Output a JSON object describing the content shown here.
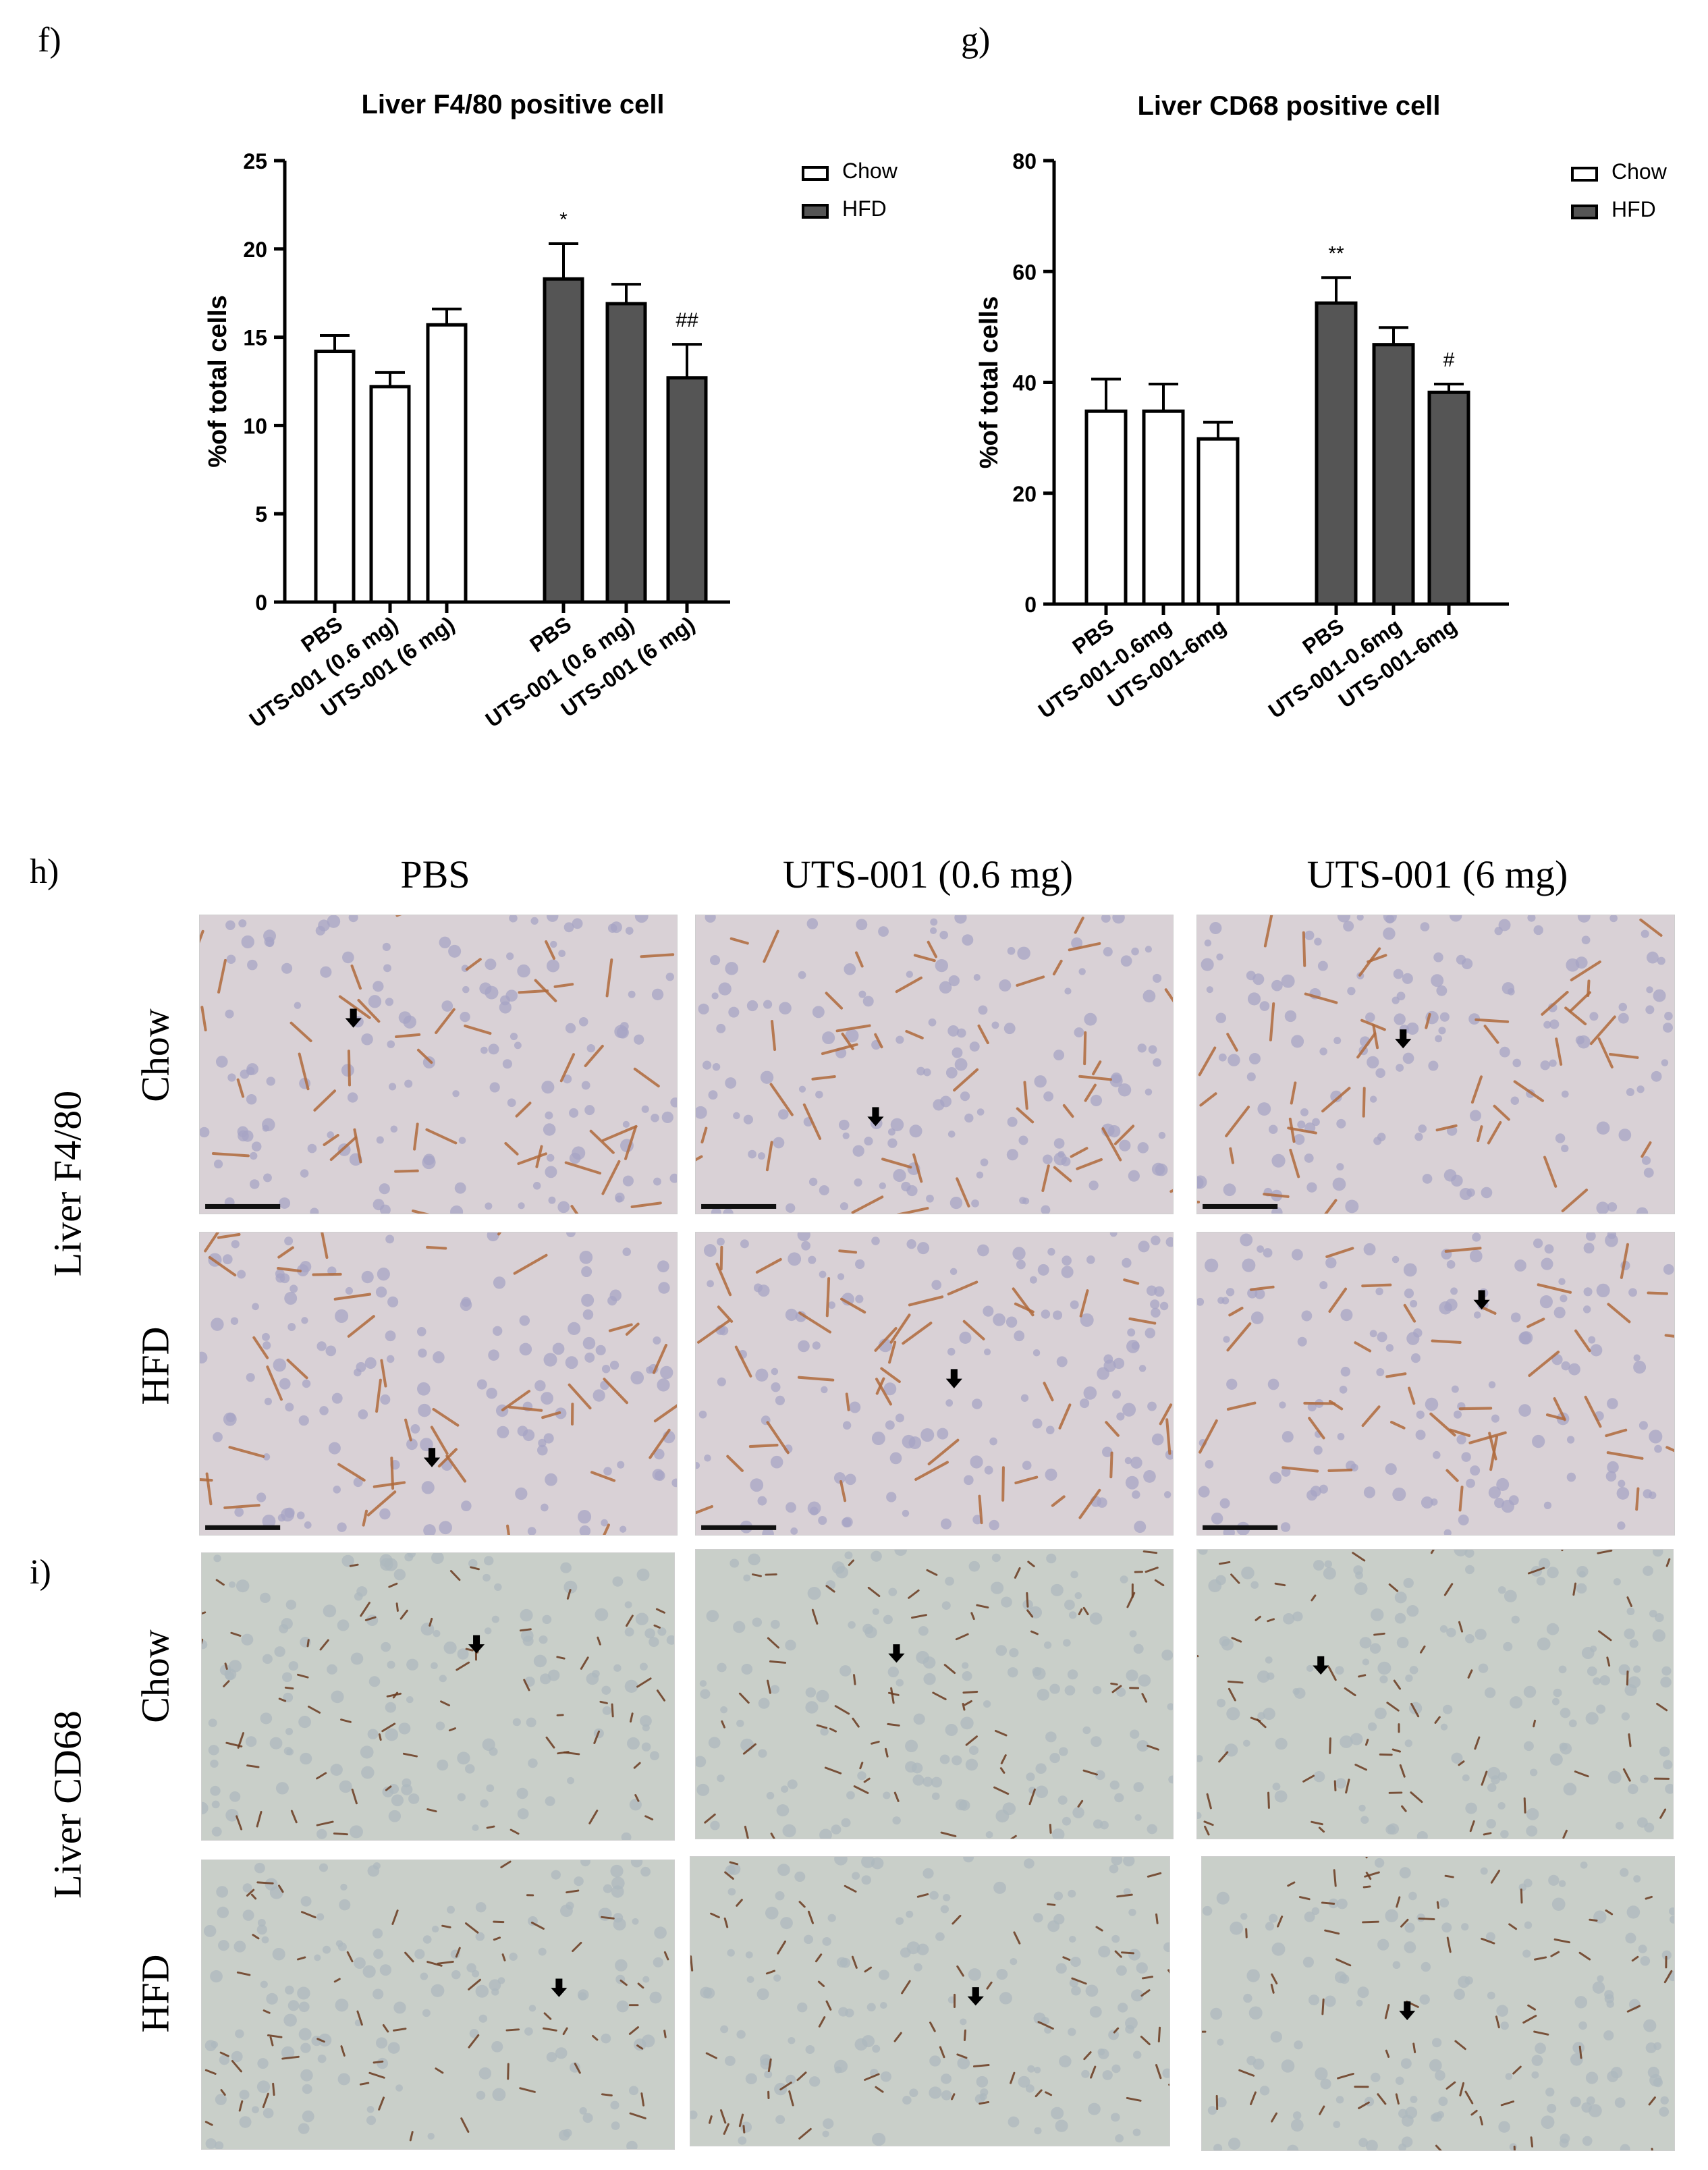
{
  "panels": {
    "f": "f)",
    "g": "g)",
    "h": "h)",
    "i": "i)"
  },
  "chart_data": [
    {
      "type": "bar",
      "title": "Liver F4/80 positive cell",
      "ylabel": "%of total cells",
      "xlabel": "",
      "ylim": [
        0,
        25
      ],
      "yticks": [
        0,
        5,
        10,
        15,
        20,
        25
      ],
      "categories": [
        "PBS",
        "UTS-001 (0.6 mg)",
        "UTS-001 (6 mg)",
        "PBS",
        "UTS-001 (0.6 mg)",
        "UTS-001 (6 mg)"
      ],
      "groups": [
        "Chow",
        "Chow",
        "Chow",
        "HFD",
        "HFD",
        "HFD"
      ],
      "values": [
        14.2,
        12.2,
        15.7,
        18.3,
        16.9,
        12.7
      ],
      "errors": [
        0.9,
        0.8,
        0.9,
        2.0,
        1.1,
        1.9
      ],
      "annotations": [
        "",
        "",
        "",
        "*",
        "",
        "##"
      ],
      "legend": [
        {
          "name": "Chow",
          "color": "#ffffff"
        },
        {
          "name": "HFD",
          "color": "#555555"
        }
      ],
      "legend_position": "top-right"
    },
    {
      "type": "bar",
      "title": "Liver CD68 positive cell",
      "ylabel": "%of total cells",
      "xlabel": "",
      "ylim": [
        0,
        80
      ],
      "yticks": [
        0,
        20,
        40,
        60,
        80
      ],
      "categories": [
        "PBS",
        "UTS-001-0.6mg",
        "UTS-001-6mg",
        "PBS",
        "UTS-001-0.6mg",
        "UTS-001-6mg"
      ],
      "groups": [
        "Chow",
        "Chow",
        "Chow",
        "HFD",
        "HFD",
        "HFD"
      ],
      "values": [
        34.8,
        34.8,
        29.8,
        54.3,
        46.8,
        38.2
      ],
      "errors": [
        5.8,
        4.9,
        3.0,
        4.6,
        3.1,
        1.5
      ],
      "annotations": [
        "",
        "",
        "",
        "**",
        "",
        "#"
      ],
      "legend": [
        {
          "name": "Chow",
          "color": "#ffffff"
        },
        {
          "name": "HFD",
          "color": "#555555"
        }
      ],
      "legend_position": "top-right"
    }
  ],
  "micrographs": {
    "columns": [
      "PBS",
      "UTS-001 (0.6 mg)",
      "UTS-001 (6 mg)"
    ],
    "f480": {
      "label": "Liver F4/80",
      "rows": [
        "Chow",
        "HFD"
      ]
    },
    "cd68": {
      "label": "Liver CD68",
      "rows": [
        "Chow",
        "HFD"
      ]
    }
  }
}
